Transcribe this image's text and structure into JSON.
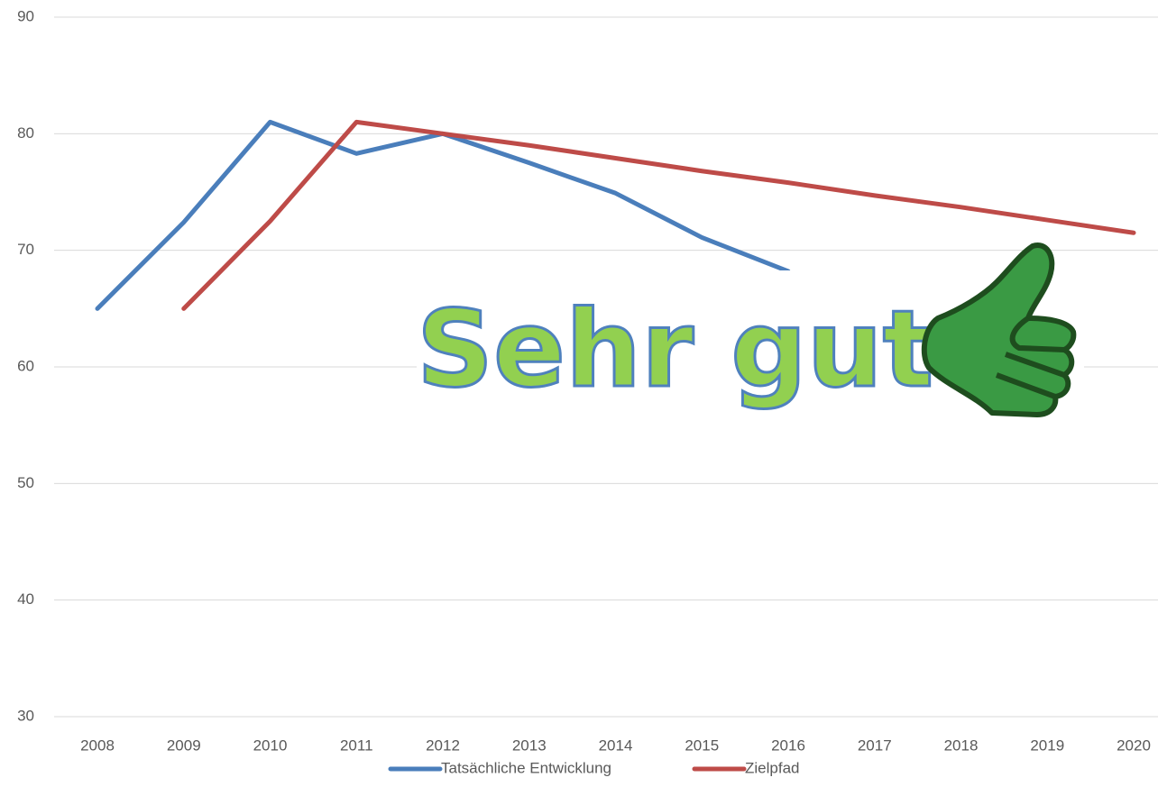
{
  "chart_data": {
    "type": "line",
    "annotation": "Sehr gut",
    "categories": [
      "2008",
      "2009",
      "2010",
      "2011",
      "2012",
      "2013",
      "2014",
      "2015",
      "2016",
      "2017",
      "2018",
      "2019",
      "2020"
    ],
    "series": [
      {
        "name": "Tatsächliche Entwicklung",
        "color": "#4a7ebb",
        "values": [
          65,
          72.4,
          81,
          78.3,
          80,
          77.5,
          74.9,
          71.1,
          68.2,
          null,
          null,
          null,
          null
        ]
      },
      {
        "name": "Zielpfad",
        "color": "#be4b48",
        "values": [
          null,
          65,
          72.5,
          81,
          80,
          79,
          77.9,
          76.8,
          75.8,
          74.7,
          73.7,
          72.6,
          71.5
        ]
      }
    ],
    "ylim": [
      30,
      90
    ],
    "yticks": [
      30,
      40,
      50,
      60,
      70,
      80,
      90
    ],
    "grid": true,
    "legend": "bottom"
  }
}
